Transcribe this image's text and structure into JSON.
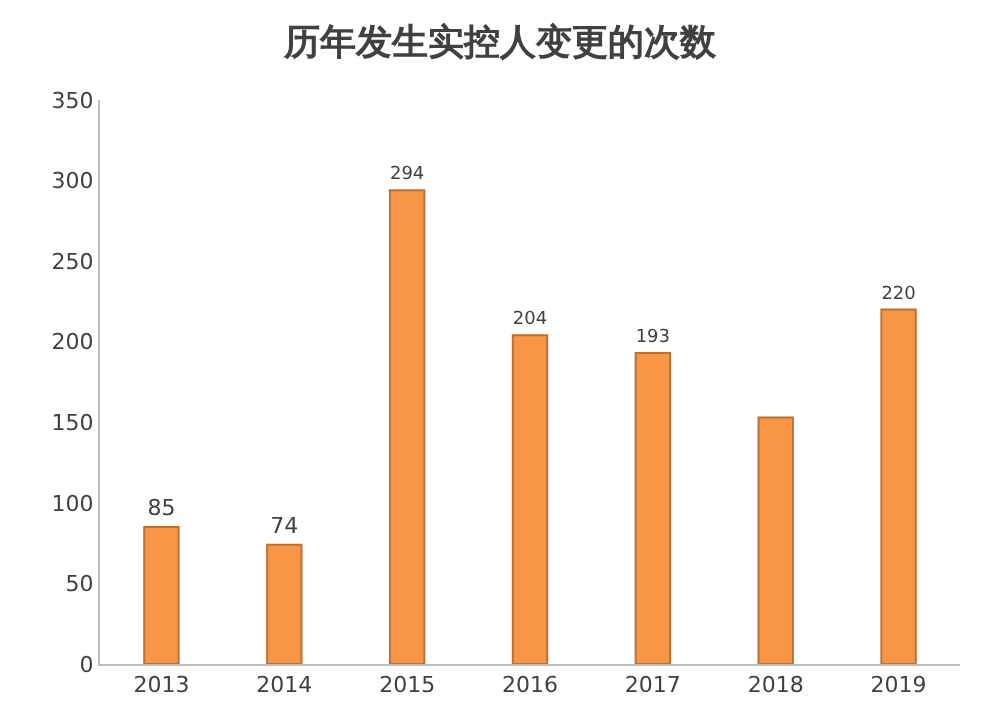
{
  "chart_data": {
    "type": "bar",
    "title": "历年发生实控人变更的次数",
    "categories": [
      "2013",
      "2014",
      "2015",
      "2016",
      "2017",
      "2018",
      "2019"
    ],
    "values": [
      85,
      74,
      294,
      204,
      193,
      153,
      220
    ],
    "value_labels": [
      "85",
      "74",
      "294",
      "204",
      "193",
      null,
      "220"
    ],
    "color": "#f79646",
    "ylim": [
      0,
      350
    ],
    "yticks": [
      0,
      50,
      100,
      150,
      200,
      250,
      300,
      350
    ],
    "legend": false
  }
}
